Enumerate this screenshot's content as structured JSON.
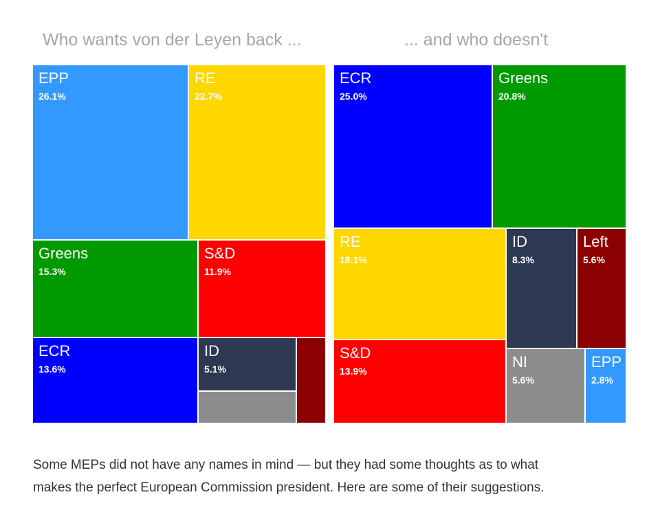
{
  "chart_data": [
    {
      "type": "treemap",
      "title": "Who wants von der Leyen back ...",
      "series": [
        {
          "name": "EPP",
          "value": 26.1,
          "label": "26.1%",
          "color": "#3399ff",
          "text_color": "#ffffff"
        },
        {
          "name": "RE",
          "value": 22.7,
          "label": "22.7%",
          "color": "#ffd700",
          "text_color": "#ffffff"
        },
        {
          "name": "Greens",
          "value": 15.3,
          "label": "15.3%",
          "color": "#009900",
          "text_color": "#ffffff"
        },
        {
          "name": "S&D",
          "value": 11.9,
          "label": "11.9%",
          "color": "#ff0000",
          "text_color": "#ffffff"
        },
        {
          "name": "ECR",
          "value": 13.6,
          "label": "13.6%",
          "color": "#0000ff",
          "text_color": "#ffffff"
        },
        {
          "name": "ID",
          "value": 5.1,
          "label": "5.1%",
          "color": "#2d3852",
          "text_color": "#ffffff"
        },
        {
          "name": "",
          "value": 3.4,
          "label": "",
          "color": "#8c8c8c",
          "text_color": "#ffffff"
        },
        {
          "name": "",
          "value": 1.9,
          "label": "",
          "color": "#8b0000",
          "text_color": "#ffffff"
        }
      ]
    },
    {
      "type": "treemap",
      "title": "... and who doesn't",
      "series": [
        {
          "name": "ECR",
          "value": 25.0,
          "label": "25.0%",
          "color": "#0000ff",
          "text_color": "#ffffff"
        },
        {
          "name": "Greens",
          "value": 20.8,
          "label": "20.8%",
          "color": "#009900",
          "text_color": "#ffffff"
        },
        {
          "name": "RE",
          "value": 18.1,
          "label": "18.1%",
          "color": "#ffd700",
          "text_color": "#ffffff"
        },
        {
          "name": "ID",
          "value": 8.3,
          "label": "8.3%",
          "color": "#2d3852",
          "text_color": "#ffffff"
        },
        {
          "name": "Left",
          "value": 5.6,
          "label": "5.6%",
          "color": "#8b0000",
          "text_color": "#ffffff"
        },
        {
          "name": "S&D",
          "value": 13.9,
          "label": "13.9%",
          "color": "#ff0000",
          "text_color": "#ffffff"
        },
        {
          "name": "NI",
          "value": 5.6,
          "label": "5.6%",
          "color": "#8c8c8c",
          "text_color": "#ffffff"
        },
        {
          "name": "EPP",
          "value": 2.8,
          "label": "2.8%",
          "color": "#3399ff",
          "text_color": "#ffffff"
        }
      ]
    }
  ],
  "caption": {
    "line1": "Some MEPs did not have any names in mind — but they had some thoughts as to what",
    "line2": "makes the perfect European Commission president. Here are some of their suggestions."
  }
}
